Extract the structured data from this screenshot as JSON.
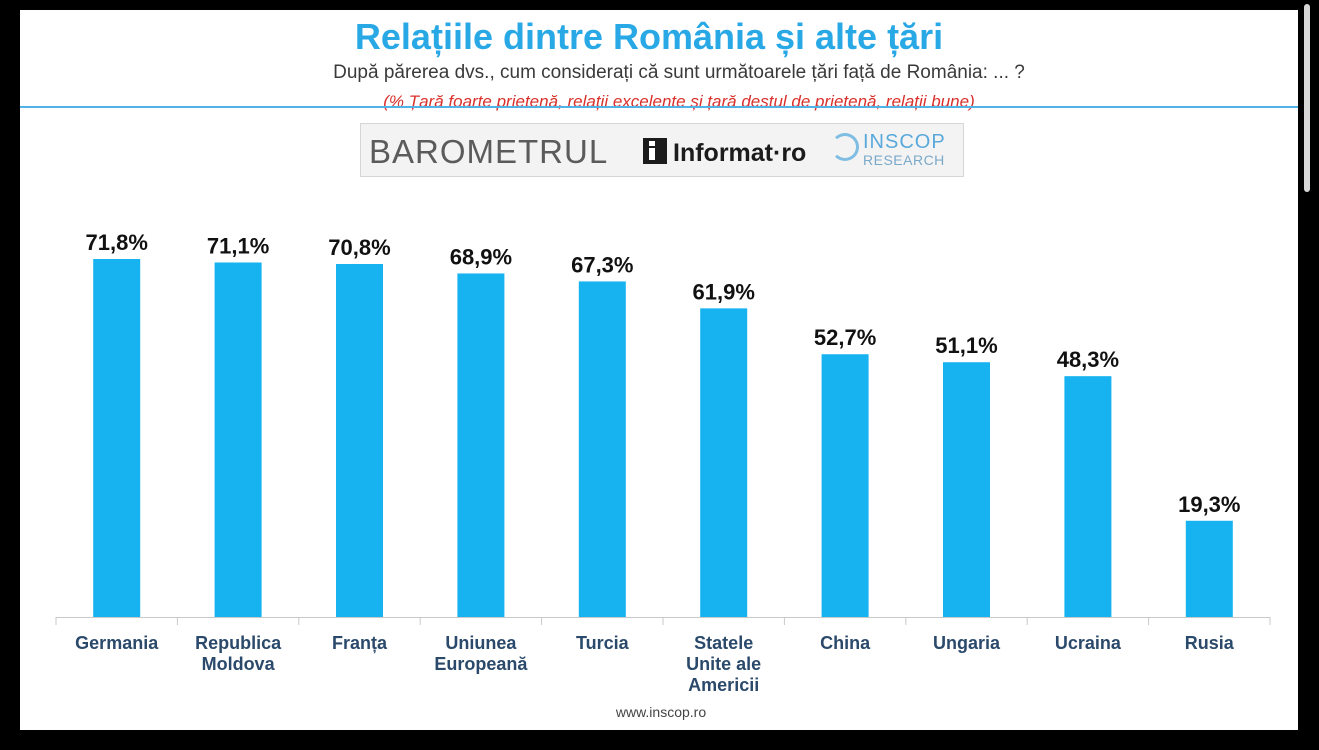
{
  "header": {
    "title": "Relațiile dintre România și alte țări",
    "subtitle": "După părerea dvs., cum considerați că sunt următoarele țări față de România: ... ?",
    "note": "(% Țară foarte prietenă, relații excelente și țară destul de prietenă, relații bune)"
  },
  "logos": {
    "barometrul": "BAROMETRUL",
    "informat": "Informat·ro",
    "inscop_line1": "INSCOP",
    "inscop_line2": "RESEARCH"
  },
  "footer": {
    "url": "www.inscop.ro"
  },
  "colors": {
    "bar": "#17b3f0",
    "title": "#29a8e6",
    "note": "#d9302b",
    "axis": "#c9c9c9"
  },
  "chart_data": {
    "type": "bar",
    "categories": [
      [
        "Germania"
      ],
      [
        "Republica",
        "Moldova"
      ],
      [
        "Franța"
      ],
      [
        "Uniunea",
        "Europeană"
      ],
      [
        "Turcia"
      ],
      [
        "Statele",
        "Unite ale",
        "Americii"
      ],
      [
        "China"
      ],
      [
        "Ungaria"
      ],
      [
        "Ucraina"
      ],
      [
        "Rusia"
      ]
    ],
    "values": [
      71.8,
      71.1,
      70.8,
      68.9,
      67.3,
      61.9,
      52.7,
      51.1,
      48.3,
      19.3
    ],
    "value_labels": [
      "71,8%",
      "71,1%",
      "70,8%",
      "68,9%",
      "67,3%",
      "61,9%",
      "52,7%",
      "51,1%",
      "48,3%",
      "19,3%"
    ],
    "ylim": [
      0,
      100
    ],
    "grid": false,
    "legend": "none"
  }
}
